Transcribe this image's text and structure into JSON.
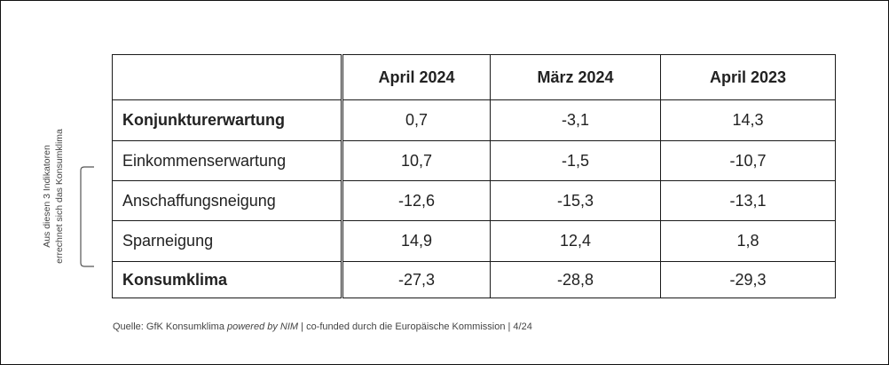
{
  "table": {
    "headers": [
      "",
      "April 2024",
      "März 2024",
      "April 2023"
    ],
    "rows": [
      {
        "label": "Konjunkturerwartung",
        "values": [
          "0,7",
          "-3,1",
          "14,3"
        ]
      },
      {
        "label": "Einkommenserwartung",
        "values": [
          "10,7",
          "-1,5",
          "-10,7"
        ]
      },
      {
        "label": "Anschaffungsneigung",
        "values": [
          "-12,6",
          "-15,3",
          "-13,1"
        ]
      },
      {
        "label": "Sparneigung",
        "values": [
          "14,9",
          "12,4",
          "1,8"
        ]
      },
      {
        "label": "Konsumklima",
        "values": [
          "-27,3",
          "-28,8",
          "-29,3"
        ]
      }
    ]
  },
  "side_note": {
    "line1": "Aus diesen 3 Indikatoren",
    "line2": "errechnet sich das Konsumklima"
  },
  "source": {
    "prefix": "Quelle: GfK Konsumklima ",
    "italic": "powered by NIM",
    "suffix": " | co-funded durch die Europäische Kommission | 4/24"
  }
}
